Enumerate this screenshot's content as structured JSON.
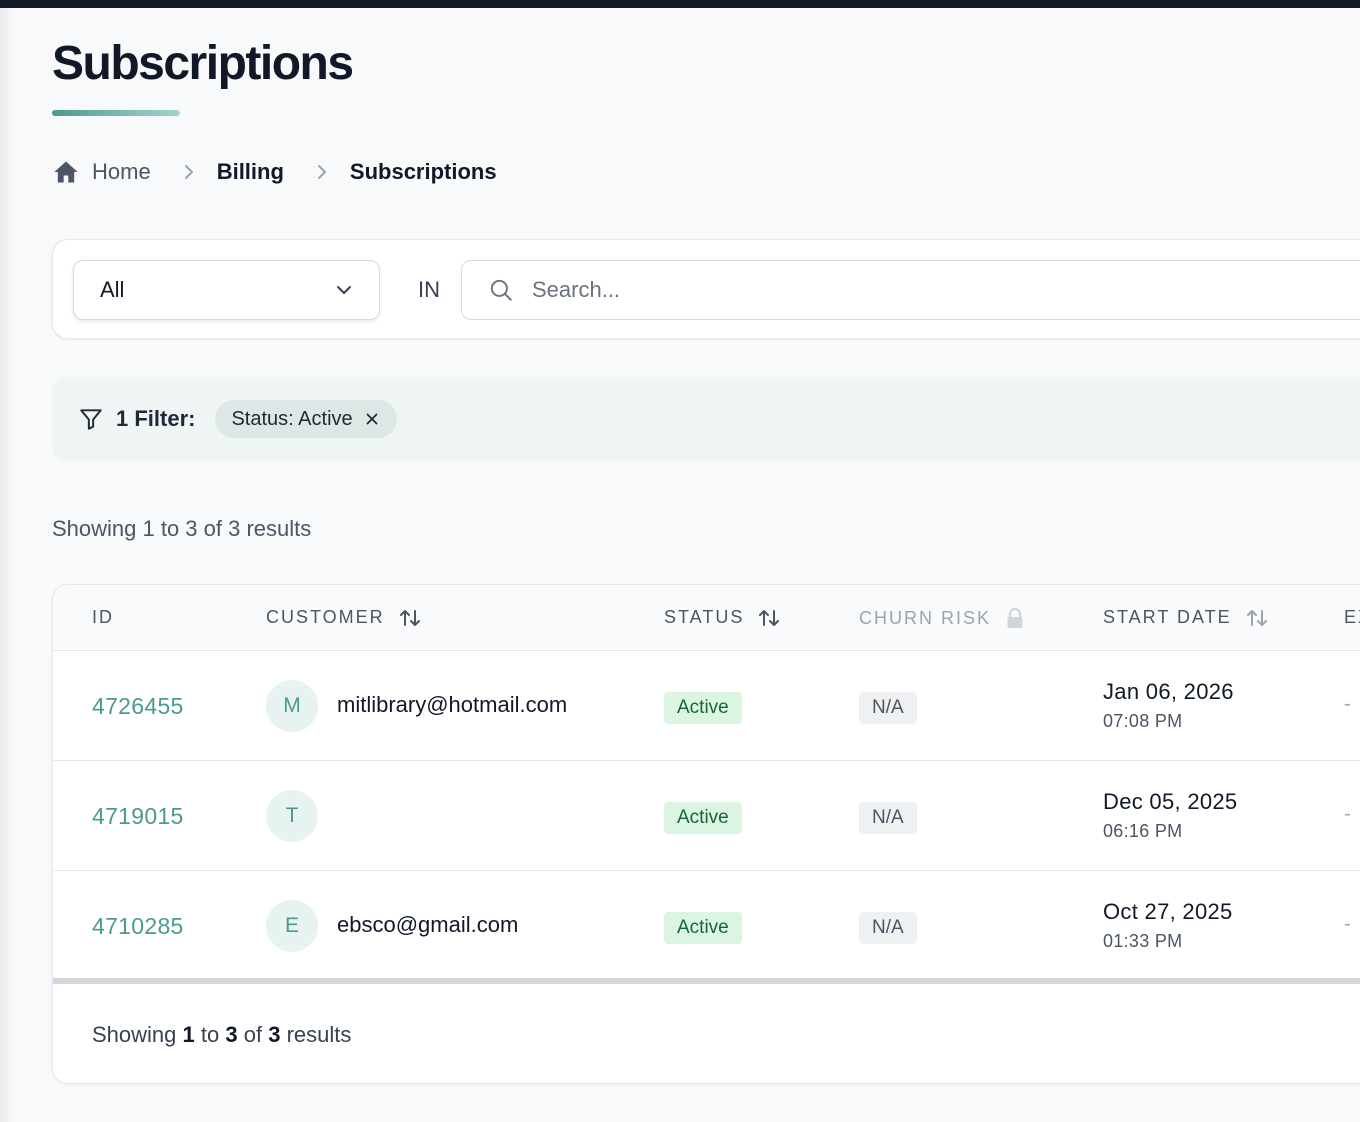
{
  "page": {
    "title": "Subscriptions"
  },
  "breadcrumb": {
    "home": "Home",
    "billing": "Billing",
    "current": "Subscriptions"
  },
  "search": {
    "scope_value": "All",
    "in_label": "IN",
    "placeholder": "Search..."
  },
  "filters": {
    "label": "1 Filter:",
    "chips": [
      {
        "label": "Status: Active"
      }
    ]
  },
  "results": {
    "summary_top": "Showing 1 to 3 of 3 results",
    "bottom_prefix": "Showing",
    "bottom_from": "1",
    "bottom_to_word": "to",
    "bottom_to": "3",
    "bottom_of_word": "of",
    "bottom_total": "3",
    "bottom_suffix": "results"
  },
  "table": {
    "columns": {
      "id": "ID",
      "customer": "CUSTOMER",
      "status": "STATUS",
      "churn_risk": "CHURN RISK",
      "start_date": "START DATE",
      "next": "EX"
    },
    "rows": [
      {
        "id": "4726455",
        "avatar": "M",
        "email": "mitlibrary@hotmail.com",
        "status": "Active",
        "churn_risk": "N/A",
        "start_date": "Jan 06, 2026",
        "start_time": "07:08 PM",
        "next": "-"
      },
      {
        "id": "4719015",
        "avatar": "T",
        "email": "",
        "status": "Active",
        "churn_risk": "N/A",
        "start_date": "Dec 05, 2025",
        "start_time": "06:16 PM",
        "next": "-"
      },
      {
        "id": "4710285",
        "avatar": "E",
        "email": "ebsco@gmail.com",
        "status": "Active",
        "churn_risk": "N/A",
        "start_date": "Oct 27, 2025",
        "start_time": "01:33 PM",
        "next": "-"
      }
    ]
  },
  "colors": {
    "accent": "#4c9a8f",
    "active_bg": "#dcf5e3",
    "active_text": "#166534",
    "dark_header": "#111827"
  }
}
